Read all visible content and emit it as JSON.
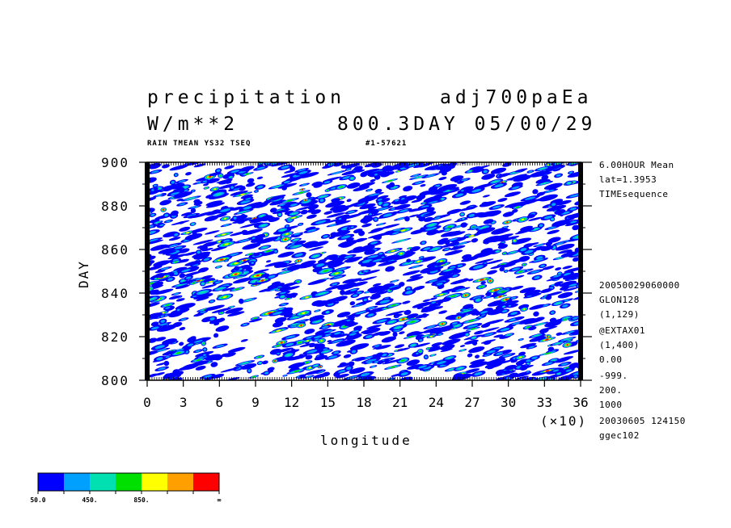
{
  "header": {
    "title": "precipitation",
    "run": "adj700paEa",
    "units": "W/m**2",
    "date": "800.3DAY 05/00/29",
    "subtitle": "RAIN TMEAN YS32 TSEQ",
    "id": "#1-57621"
  },
  "side_info": [
    "6.00HOUR Mean",
    "lat=1.3953",
    "TIMEsequence",
    "20050029060000",
    "GLON128",
    "(1,129)",
    "@EXTAX01",
    "(1,400)",
    "0.00",
    "-999.",
    "200.",
    "1000",
    "20030605 124150",
    "ggec102"
  ],
  "colorbar": {
    "colors": [
      "#0000ff",
      "#00a0ff",
      "#00e0b0",
      "#00e000",
      "#ffff00",
      "#ffa000",
      "#ff0000"
    ],
    "labels": [
      "50.0",
      "450.",
      "850.",
      "∞"
    ]
  },
  "chart_data": {
    "type": "heatmap",
    "title": "precipitation",
    "xlabel": "longitude",
    "ylabel": "DAY",
    "x_multiplier": "(×10)",
    "xlim": [
      0,
      36
    ],
    "ylim": [
      800,
      900
    ],
    "x_ticks": [
      "0",
      "3",
      "6",
      "9",
      "12",
      "15",
      "18",
      "21",
      "24",
      "27",
      "30",
      "33",
      "36"
    ],
    "y_ticks": [
      "800",
      "820",
      "840",
      "860",
      "880",
      "900"
    ],
    "levels": [
      50,
      250,
      450,
      650,
      850,
      1050
    ],
    "description_values": "Time-longitude Hovmoller of 6-hourly mean precipitation at lat=1.3953; scattered eastward-propagating rain streaks with maxima near longitude 170-250."
  }
}
